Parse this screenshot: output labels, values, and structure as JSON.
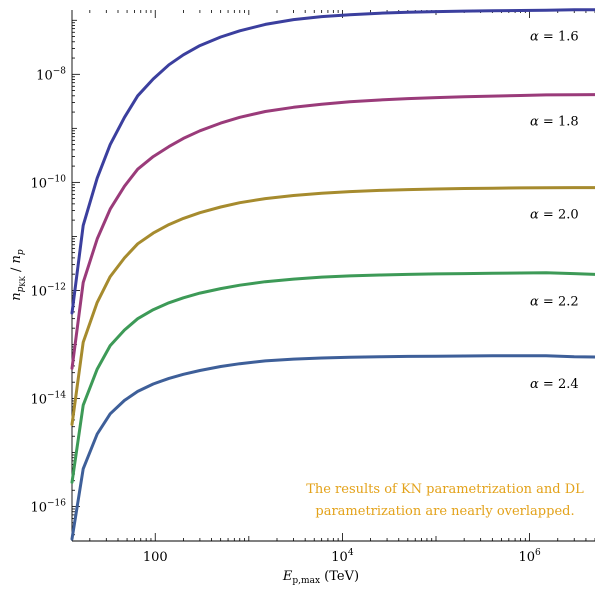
{
  "chart_data": {
    "type": "line",
    "x_scale": "log",
    "y_scale": "log",
    "xlim": [
      12.9,
      5000000
    ],
    "ylim": [
      2.3e-17,
      1.55e-07
    ],
    "xlabel_main": "E",
    "xlabel_sub": "p,max",
    "xlabel_unit": " (TeV)",
    "ylabel_main": "n",
    "ylabel_sub1": "p",
    "ylabel_sub2": "KK",
    "ylabel_sep": " / ",
    "ylabel_tail": "n",
    "ylabel_tail_sub": "p",
    "x_ticks": [
      {
        "value": 100,
        "base": "100",
        "exp": ""
      },
      {
        "value": 10000,
        "base": "10",
        "exp": "4"
      },
      {
        "value": 1000000,
        "base": "10",
        "exp": "6"
      }
    ],
    "y_ticks": [
      {
        "value": 1e-08,
        "base": "10",
        "exp": "−8"
      },
      {
        "value": 1e-10,
        "base": "10",
        "exp": "−10"
      },
      {
        "value": 1e-12,
        "base": "10",
        "exp": "−12"
      },
      {
        "value": 1e-14,
        "base": "10",
        "exp": "−14"
      },
      {
        "value": 1e-16,
        "base": "10",
        "exp": "−16"
      }
    ],
    "note_line1": "The results of KN parametrization and DL",
    "note_line2": "parametrization are nearly overlapped.",
    "note_color": "#e3a21a",
    "x": [
      12.9,
      17,
      24,
      33,
      47,
      65,
      95,
      140,
      200,
      300,
      500,
      800,
      1500,
      3000,
      6000,
      12000,
      25000,
      50000,
      100000,
      200000,
      400000,
      800000,
      1500000,
      3000000,
      5000000
    ],
    "series": [
      {
        "label_prefix": "α",
        "label_value": " = 1.6",
        "color": "#3b3f9e",
        "values": [
          3.8e-13,
          1.6e-11,
          1.2e-10,
          5e-10,
          1.6e-09,
          4e-09,
          8.2e-09,
          1.5e-08,
          2.3e-08,
          3.4e-08,
          4.9e-08,
          6.4e-08,
          8.4e-08,
          1.03e-07,
          1.17e-07,
          1.27e-07,
          1.35e-07,
          1.41e-07,
          1.45e-07,
          1.48e-07,
          1.5e-07,
          1.52e-07,
          1.54e-07,
          1.56e-07,
          1.57e-07
        ]
      },
      {
        "label_prefix": "α",
        "label_value": " = 1.8",
        "color": "#9a3b7a",
        "values": [
          3.6e-14,
          1.4e-12,
          9e-12,
          3.2e-11,
          8.5e-11,
          1.75e-10,
          3e-10,
          4.6e-10,
          6.5e-10,
          9e-10,
          1.25e-09,
          1.6e-09,
          2.05e-09,
          2.45e-09,
          2.8e-09,
          3.1e-09,
          3.35e-09,
          3.55e-09,
          3.7e-09,
          3.85e-09,
          3.95e-09,
          4.05e-09,
          4.15e-09,
          4.2e-09,
          4.22e-09
        ]
      },
      {
        "label_prefix": "α",
        "label_value": " = 2.0",
        "color": "#a68b2e",
        "values": [
          3.3e-15,
          1.1e-13,
          6e-13,
          1.8e-12,
          4e-12,
          7.3e-12,
          1.15e-11,
          1.65e-11,
          2.15e-11,
          2.75e-11,
          3.5e-11,
          4.2e-11,
          5e-11,
          5.7e-11,
          6.3e-11,
          6.75e-11,
          7.1e-11,
          7.35e-11,
          7.55e-11,
          7.7e-11,
          7.8e-11,
          7.9e-11,
          7.95e-11,
          8e-11,
          8e-11
        ]
      },
      {
        "label_prefix": "α",
        "label_value": " = 2.2",
        "color": "#3d9a57",
        "values": [
          2.8e-16,
          7.5e-15,
          3.5e-14,
          9.5e-14,
          1.85e-13,
          3e-13,
          4.4e-13,
          5.9e-13,
          7.3e-13,
          8.9e-13,
          1.08e-12,
          1.25e-12,
          1.45e-12,
          1.62e-12,
          1.76e-12,
          1.86e-12,
          1.93e-12,
          1.98e-12,
          2.02e-12,
          2.05e-12,
          2.08e-12,
          2.1e-12,
          2.12e-12,
          2.05e-12,
          1.98e-12
        ]
      },
      {
        "label_prefix": "α",
        "label_value": " = 2.4",
        "color": "#3e5f99",
        "values": [
          2.5e-17,
          5e-16,
          2.2e-15,
          5.2e-15,
          9.2e-15,
          1.35e-14,
          1.85e-14,
          2.35e-14,
          2.8e-14,
          3.3e-14,
          3.9e-14,
          4.4e-14,
          4.95e-14,
          5.35e-14,
          5.6e-14,
          5.8e-14,
          5.9e-14,
          6e-14,
          6.05e-14,
          6.1e-14,
          6.15e-14,
          6.2e-14,
          6.2e-14,
          5.9e-14,
          5.85e-14
        ]
      }
    ]
  }
}
